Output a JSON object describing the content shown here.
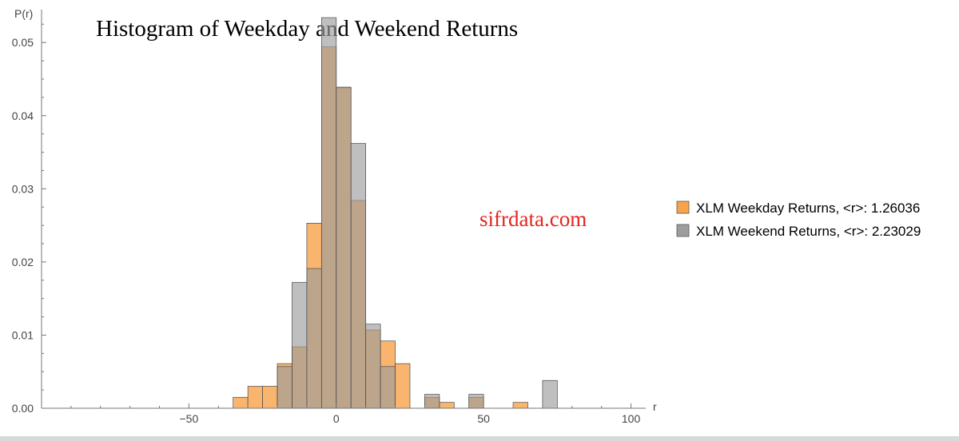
{
  "chart_data": {
    "type": "bar",
    "title": "Histogram of Weekday and Weekend Returns",
    "xlabel": "r",
    "ylabel": "P(r)",
    "xlim": [
      -100,
      105
    ],
    "ylim": [
      0,
      0.0545
    ],
    "bin_width": 5,
    "x_ticks": [
      -50,
      0,
      50,
      100
    ],
    "x_tick_labels": [
      "−50",
      "0",
      "50",
      "100"
    ],
    "y_ticks": [
      0,
      0.01,
      0.02,
      0.03,
      0.04,
      0.05
    ],
    "y_tick_labels": [
      "0.00",
      "0.01",
      "0.02",
      "0.03",
      "0.04",
      "0.05"
    ],
    "legend_position": "right",
    "watermark": "sifrdata.com",
    "series": [
      {
        "name": "XLM Weekday Returns, <r>: 1.26036",
        "color": "#f8a34a",
        "bins": [
          {
            "x": -35,
            "y": 0.0015
          },
          {
            "x": -30,
            "y": 0.003
          },
          {
            "x": -25,
            "y": 0.003
          },
          {
            "x": -20,
            "y": 0.0061
          },
          {
            "x": -15,
            "y": 0.0084
          },
          {
            "x": -10,
            "y": 0.0253
          },
          {
            "x": -5,
            "y": 0.0494
          },
          {
            "x": 0,
            "y": 0.0438
          },
          {
            "x": 5,
            "y": 0.0284
          },
          {
            "x": 10,
            "y": 0.0107
          },
          {
            "x": 15,
            "y": 0.0092
          },
          {
            "x": 20,
            "y": 0.0061
          },
          {
            "x": 30,
            "y": 0.0015
          },
          {
            "x": 35,
            "y": 0.0008
          },
          {
            "x": 45,
            "y": 0.0015
          },
          {
            "x": 60,
            "y": 0.0008
          }
        ]
      },
      {
        "name": "XLM Weekend Returns, <r>: 2.23029",
        "color": "#9d9d9d",
        "bins": [
          {
            "x": -20,
            "y": 0.0057
          },
          {
            "x": -15,
            "y": 0.0172
          },
          {
            "x": -10,
            "y": 0.0191
          },
          {
            "x": -5,
            "y": 0.0534
          },
          {
            "x": 0,
            "y": 0.0439
          },
          {
            "x": 5,
            "y": 0.0362
          },
          {
            "x": 10,
            "y": 0.0115
          },
          {
            "x": 15,
            "y": 0.0057
          },
          {
            "x": 30,
            "y": 0.0019
          },
          {
            "x": 45,
            "y": 0.0019
          },
          {
            "x": 70,
            "y": 0.0038
          }
        ]
      }
    ]
  }
}
